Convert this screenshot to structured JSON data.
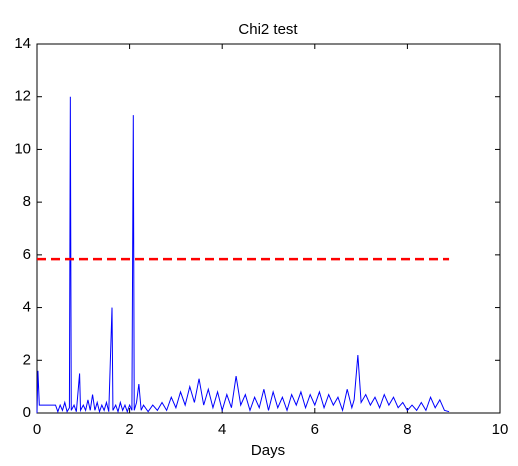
{
  "chart_data": {
    "type": "line",
    "title": "Chi2 test",
    "x_label": "Days",
    "xlim": [
      0,
      10
    ],
    "xticks": [
      0,
      2,
      4,
      6,
      8,
      10
    ],
    "ylim": [
      0,
      14
    ],
    "yticks": [
      0,
      2,
      4,
      6,
      8,
      10,
      12,
      14
    ],
    "grid": false,
    "series": [
      {
        "color": "#0000ff",
        "line_style": "solid",
        "x": [
          0,
          0.02,
          0.05,
          0.4,
          0.45,
          0.5,
          0.55,
          0.6,
          0.65,
          0.7,
          0.72,
          0.74,
          0.8,
          0.85,
          0.92,
          0.94,
          1.0,
          1.05,
          1.1,
          1.15,
          1.2,
          1.25,
          1.3,
          1.35,
          1.4,
          1.45,
          1.5,
          1.55,
          1.62,
          1.64,
          1.7,
          1.75,
          1.8,
          1.85,
          1.9,
          1.95,
          2.0,
          2.05,
          2.08,
          2.1,
          2.15,
          2.2,
          2.25,
          2.3,
          2.4,
          2.5,
          2.6,
          2.7,
          2.8,
          2.9,
          3.0,
          3.1,
          3.2,
          3.3,
          3.4,
          3.5,
          3.6,
          3.7,
          3.8,
          3.9,
          4.0,
          4.1,
          4.2,
          4.3,
          4.4,
          4.5,
          4.6,
          4.7,
          4.8,
          4.9,
          5.0,
          5.1,
          5.2,
          5.3,
          5.4,
          5.5,
          5.6,
          5.7,
          5.8,
          5.9,
          6.0,
          6.1,
          6.2,
          6.3,
          6.4,
          6.5,
          6.6,
          6.7,
          6.8,
          6.85,
          6.93,
          7.0,
          7.1,
          7.2,
          7.3,
          7.4,
          7.5,
          7.6,
          7.7,
          7.8,
          7.9,
          8.0,
          8.1,
          8.2,
          8.3,
          8.4,
          8.5,
          8.6,
          8.7,
          8.8,
          8.9
        ],
        "values": [
          0,
          1.6,
          0.3,
          0.3,
          0.05,
          0.3,
          0.1,
          0.4,
          0.05,
          0.2,
          12.0,
          0.1,
          0.3,
          0.05,
          1.5,
          0.1,
          0.3,
          0.1,
          0.5,
          0.1,
          0.7,
          0.1,
          0.4,
          0.05,
          0.3,
          0.1,
          0.4,
          0.05,
          4.0,
          0.1,
          0.3,
          0.05,
          0.4,
          0.1,
          0.3,
          0.05,
          0.3,
          0.1,
          11.3,
          0.1,
          0.4,
          1.1,
          0.1,
          0.3,
          0.05,
          0.3,
          0.1,
          0.4,
          0.1,
          0.6,
          0.2,
          0.8,
          0.3,
          1.0,
          0.4,
          1.3,
          0.3,
          0.9,
          0.2,
          0.8,
          0.1,
          0.7,
          0.2,
          1.4,
          0.3,
          0.7,
          0.1,
          0.6,
          0.2,
          0.9,
          0.1,
          0.8,
          0.2,
          0.6,
          0.1,
          0.7,
          0.3,
          0.8,
          0.2,
          0.7,
          0.3,
          0.8,
          0.2,
          0.7,
          0.3,
          0.6,
          0.1,
          0.9,
          0.2,
          0.5,
          2.2,
          0.4,
          0.7,
          0.3,
          0.6,
          0.2,
          0.7,
          0.3,
          0.6,
          0.2,
          0.4,
          0.1,
          0.3,
          0.1,
          0.4,
          0.1,
          0.6,
          0.2,
          0.5,
          0.1,
          0.05
        ]
      },
      {
        "color": "#ff0000",
        "line_style": "dashed",
        "x": [
          0,
          8.9
        ],
        "values": [
          5.84,
          5.84
        ]
      }
    ]
  }
}
